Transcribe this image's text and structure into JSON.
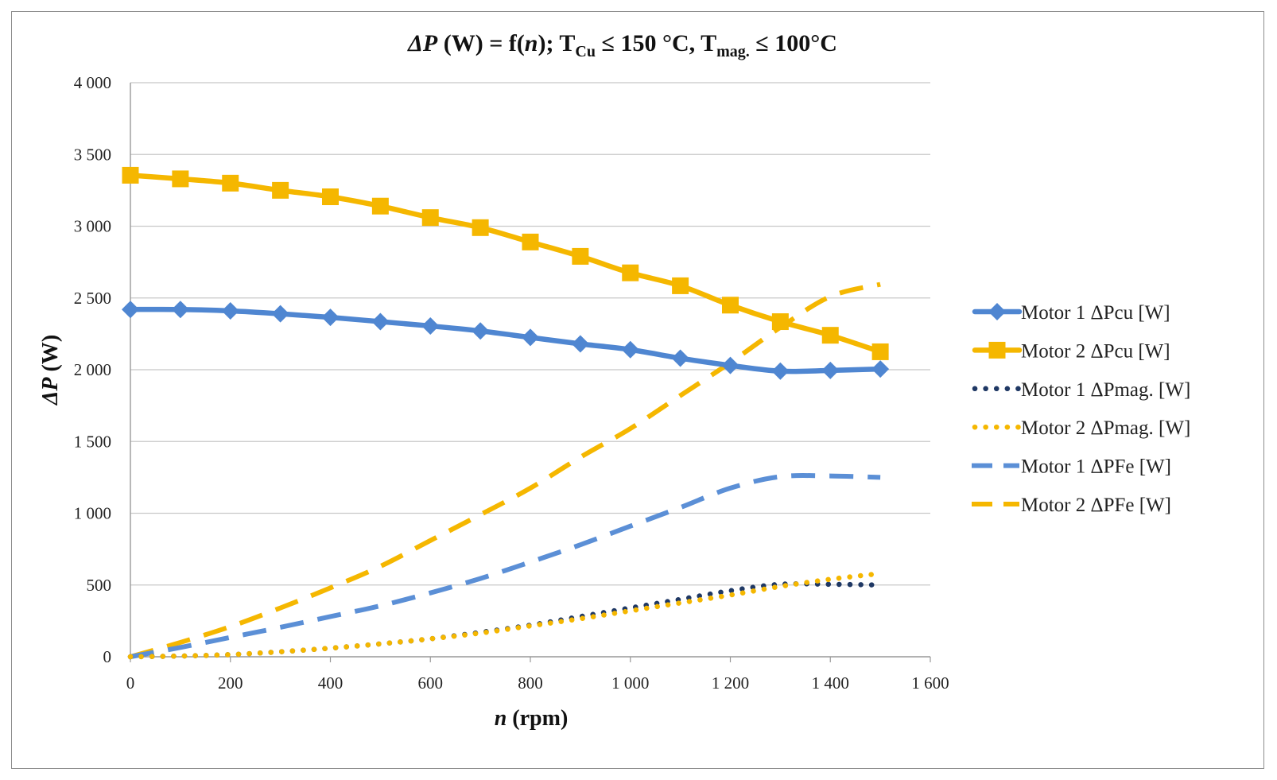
{
  "chart_data": {
    "type": "line",
    "title": {
      "prefix": "ΔP",
      "part1": " (W) =  f(",
      "n": "n",
      "part2": ");   T",
      "sub_cu": "Cu",
      "part3": " ≤ 150 °C, T",
      "sub_mag": "mag.",
      "part4": "  ≤  100°C"
    },
    "xlabel": {
      "var": "n",
      "unit": " (rpm)"
    },
    "ylabel": {
      "var": "ΔP",
      "unit": " (W)"
    },
    "xlim": [
      0,
      1600
    ],
    "ylim": [
      0,
      4000
    ],
    "x_ticks": [
      {
        "v": 0,
        "label": "0"
      },
      {
        "v": 200,
        "label": "200"
      },
      {
        "v": 400,
        "label": "400"
      },
      {
        "v": 600,
        "label": "600"
      },
      {
        "v": 800,
        "label": "800"
      },
      {
        "v": 1000,
        "label": "1 000"
      },
      {
        "v": 1200,
        "label": "1 200"
      },
      {
        "v": 1400,
        "label": "1 400"
      },
      {
        "v": 1600,
        "label": "1 600"
      }
    ],
    "y_ticks": [
      {
        "v": 0,
        "label": "0"
      },
      {
        "v": 500,
        "label": "500"
      },
      {
        "v": 1000,
        "label": "1 000"
      },
      {
        "v": 1500,
        "label": "1 500"
      },
      {
        "v": 2000,
        "label": "2 000"
      },
      {
        "v": 2500,
        "label": "2 500"
      },
      {
        "v": 3000,
        "label": "3 000"
      },
      {
        "v": 3500,
        "label": "3 500"
      },
      {
        "v": 4000,
        "label": "4 000"
      }
    ],
    "grid": "horizontal",
    "legend_position": "right",
    "series": [
      {
        "name": "Motor 1 ΔPcu [W]",
        "style": "solid",
        "marker": "diamond",
        "color": "#4f86d1",
        "x": [
          0,
          100,
          200,
          300,
          400,
          500,
          600,
          700,
          800,
          900,
          1000,
          1100,
          1200,
          1300,
          1400,
          1500
        ],
        "y": [
          2420,
          2420,
          2410,
          2390,
          2365,
          2335,
          2305,
          2270,
          2225,
          2180,
          2140,
          2080,
          2030,
          1990,
          1995,
          2005
        ]
      },
      {
        "name": "Motor 2 ΔPcu [W]",
        "style": "solid",
        "marker": "square",
        "color": "#f5b700",
        "x": [
          0,
          100,
          200,
          300,
          400,
          500,
          600,
          700,
          800,
          900,
          1000,
          1100,
          1200,
          1300,
          1400,
          1500
        ],
        "y": [
          3355,
          3330,
          3300,
          3250,
          3205,
          3140,
          3060,
          2990,
          2890,
          2790,
          2675,
          2585,
          2450,
          2335,
          2240,
          2125
        ]
      },
      {
        "name": "Motor 1 ΔPmag. [W]",
        "style": "dotted",
        "marker": "none",
        "color": "#1f3864",
        "x": [
          0,
          100,
          200,
          300,
          400,
          500,
          600,
          700,
          800,
          900,
          1000,
          1100,
          1200,
          1300,
          1400,
          1500
        ],
        "y": [
          0,
          5,
          15,
          35,
          60,
          90,
          125,
          170,
          220,
          280,
          340,
          400,
          460,
          505,
          505,
          500
        ]
      },
      {
        "name": "Motor 2 ΔPmag. [W]",
        "style": "dotted",
        "marker": "none",
        "color": "#f5b700",
        "x": [
          0,
          100,
          200,
          300,
          400,
          500,
          600,
          700,
          800,
          900,
          1000,
          1100,
          1200,
          1300,
          1400,
          1500
        ],
        "y": [
          0,
          5,
          15,
          35,
          60,
          90,
          125,
          165,
          215,
          265,
          320,
          375,
          430,
          490,
          540,
          580
        ]
      },
      {
        "name": "Motor 1 ΔPFe [W]",
        "style": "dashed",
        "marker": "none",
        "color": "#5b8fd6",
        "x": [
          0,
          100,
          200,
          300,
          400,
          500,
          600,
          700,
          800,
          900,
          1000,
          1100,
          1200,
          1300,
          1400,
          1500
        ],
        "y": [
          0,
          65,
          135,
          205,
          280,
          355,
          445,
          545,
          660,
          780,
          910,
          1040,
          1175,
          1255,
          1260,
          1250
        ]
      },
      {
        "name": "Motor 2 ΔPFe [W]",
        "style": "dashed",
        "marker": "none",
        "color": "#f5b700",
        "x": [
          0,
          100,
          200,
          300,
          400,
          500,
          600,
          700,
          800,
          900,
          1000,
          1100,
          1200,
          1300,
          1400,
          1500
        ],
        "y": [
          0,
          100,
          210,
          340,
          480,
          630,
          810,
          990,
          1175,
          1390,
          1590,
          1820,
          2050,
          2295,
          2510,
          2595
        ]
      }
    ]
  }
}
